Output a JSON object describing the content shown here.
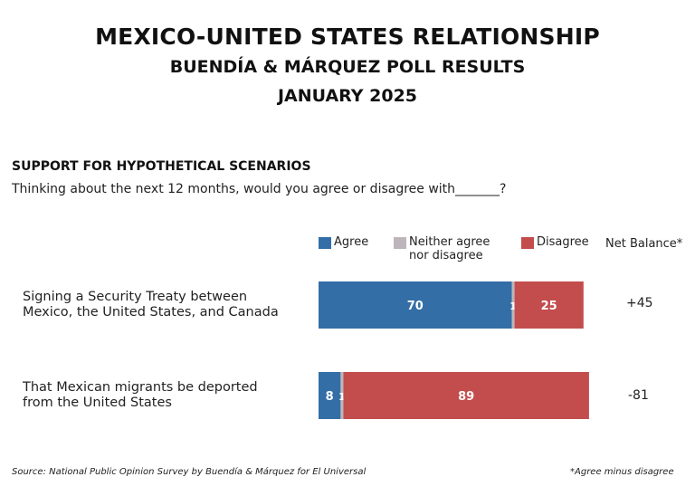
{
  "header": {
    "title": "MEXICO-UNITED STATES RELATIONSHIP",
    "subtitle": "BUENDÍA & MÁRQUEZ POLL RESULTS",
    "date": "JANUARY 2025"
  },
  "section": {
    "heading": "SUPPORT FOR HYPOTHETICAL SCENARIOS",
    "question": "Thinking about the next 12 months, would you agree or disagree with_______?"
  },
  "legend": {
    "agree": "Agree",
    "neither_line1": "Neither agree",
    "neither_line2": "nor disagree",
    "disagree": "Disagree",
    "net_balance": "Net Balance*"
  },
  "colors": {
    "agree": "#336ea6",
    "neither": "#bcb6ba",
    "disagree": "#c34d4d"
  },
  "chart_data": {
    "type": "bar",
    "orientation": "horizontal",
    "stacked": true,
    "title": "SUPPORT FOR HYPOTHETICAL SCENARIOS",
    "categories": [
      "Signing a Security Treaty between Mexico, the United States, and Canada",
      "That Mexican migrants be deported from the United States"
    ],
    "category_lines": [
      [
        "Signing a Security Treaty between",
        "Mexico, the United States, and Canada"
      ],
      [
        "That Mexican migrants be deported",
        "from the United States"
      ]
    ],
    "series": [
      {
        "name": "Agree",
        "values": [
          70,
          8
        ]
      },
      {
        "name": "Neither agree nor disagree",
        "values": [
          1,
          1
        ]
      },
      {
        "name": "Disagree",
        "values": [
          25,
          89
        ]
      }
    ],
    "net_balance": [
      "+45",
      "-81"
    ],
    "xlim": [
      0,
      100
    ],
    "grid": false,
    "legend_position": "top"
  },
  "footer": {
    "source": "Source: National Public Opinion Survey by Buendía & Márquez for El Universal",
    "note": "*Agree minus disagree"
  }
}
